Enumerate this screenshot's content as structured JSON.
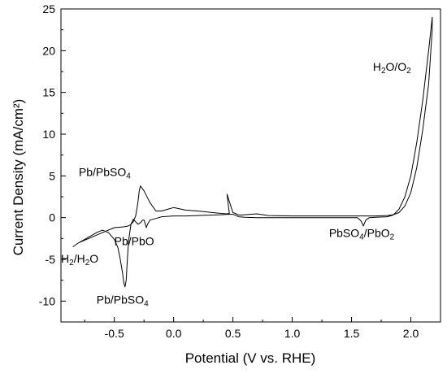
{
  "chart_data": {
    "type": "line",
    "xlabel": "Potential (V vs. RHE)",
    "ylabel": "Current Density (mA/cm²)",
    "xlim": [
      -0.95,
      2.25
    ],
    "ylim": [
      -12.5,
      25
    ],
    "xticks": [
      -0.5,
      0.0,
      0.5,
      1.0,
      1.5,
      2.0
    ],
    "xtick_labels": [
      "-0.5",
      "0.0",
      "0.5",
      "1.0",
      "1.5",
      "2.0"
    ],
    "yticks": [
      -10,
      -5,
      0,
      5,
      10,
      15,
      20,
      25
    ],
    "ytick_labels": [
      "-10",
      "-5",
      "0",
      "5",
      "10",
      "15",
      "20",
      "25"
    ],
    "grid": false,
    "line_color": "#000000",
    "series": [
      {
        "x": [
          -0.85,
          -0.8,
          -0.75,
          -0.7,
          -0.65,
          -0.6,
          -0.55,
          -0.5,
          -0.47,
          -0.45,
          -0.43,
          -0.42,
          -0.41,
          -0.4,
          -0.39,
          -0.38,
          -0.36,
          -0.34,
          -0.32,
          -0.3,
          -0.28,
          -0.26,
          -0.25,
          -0.24,
          -0.23,
          -0.22,
          -0.2,
          -0.15,
          -0.1,
          0.0,
          0.1,
          0.2,
          0.3,
          0.4,
          0.45,
          0.5,
          0.55,
          0.6,
          0.7,
          0.8,
          1.0,
          1.2,
          1.4,
          1.55,
          1.58,
          1.6,
          1.62,
          1.65,
          1.7,
          1.8,
          1.85,
          1.9,
          1.95,
          2.0,
          2.05,
          2.1,
          2.15,
          2.18,
          2.18,
          2.15,
          2.1,
          2.05,
          2.0,
          1.95,
          1.9,
          1.85,
          1.8,
          1.7,
          1.6,
          1.4,
          1.2,
          1.0,
          0.8,
          0.7,
          0.6,
          0.55,
          0.52,
          0.5,
          0.45,
          0.47,
          0.45,
          0.4,
          0.3,
          0.2,
          0.1,
          0.0,
          -0.05,
          -0.1,
          -0.15,
          -0.2,
          -0.25,
          -0.28,
          -0.29,
          -0.3,
          -0.31,
          -0.32,
          -0.34,
          -0.36,
          -0.38,
          -0.42,
          -0.5,
          -0.6,
          -0.7,
          -0.8,
          -0.85
        ],
        "y": [
          -3.5,
          -3.0,
          -2.6,
          -2.2,
          -1.8,
          -1.5,
          -1.8,
          -2.6,
          -3.6,
          -5.0,
          -6.7,
          -7.8,
          -8.3,
          -7.5,
          -5.0,
          -2.8,
          -0.8,
          -0.2,
          -0.5,
          -0.8,
          -0.6,
          -0.3,
          -0.3,
          -0.7,
          -1.2,
          -0.8,
          -0.3,
          -0.1,
          0.1,
          0.2,
          0.2,
          0.25,
          0.3,
          0.35,
          0.4,
          0.4,
          0.1,
          0.05,
          0.0,
          0.0,
          0.0,
          0.0,
          0.0,
          0.0,
          -0.4,
          -1.0,
          -0.3,
          0.0,
          0.05,
          0.1,
          0.3,
          1.0,
          2.5,
          5.0,
          9.0,
          14.0,
          20.0,
          24.0,
          22.5,
          16.0,
          10.5,
          6.0,
          3.0,
          1.4,
          0.6,
          0.35,
          0.25,
          0.2,
          0.2,
          0.2,
          0.2,
          0.2,
          0.25,
          0.45,
          0.35,
          0.3,
          0.5,
          0.6,
          2.8,
          0.5,
          0.45,
          0.5,
          0.65,
          0.8,
          0.9,
          1.2,
          1.0,
          0.8,
          0.8,
          1.8,
          3.2,
          3.8,
          3.2,
          2.0,
          1.0,
          0.2,
          -0.5,
          -0.8,
          -1.0,
          -1.1,
          -1.2,
          -1.8,
          -2.4,
          -3.0,
          -3.5
        ]
      }
    ],
    "annotations": [
      {
        "main": "Pb/PbSO",
        "sub": "4",
        "tail": "",
        "x": -0.8,
        "y": 5.0
      },
      {
        "main": "Pb/PbO",
        "sub": "",
        "tail": "",
        "x": -0.5,
        "y": -3.3
      },
      {
        "main": "H",
        "sub": "2",
        "tail": "/H",
        "sub2": "2",
        "tail2": "O",
        "x": -0.95,
        "y": -5.4
      },
      {
        "main": "Pb/PbSO",
        "sub": "4",
        "tail": "",
        "x": -0.65,
        "y": -10.3
      },
      {
        "main": "PbSO",
        "sub": "4",
        "tail": "/PbO",
        "sub2": "2",
        "tail2": "",
        "x": 1.31,
        "y": -2.3
      },
      {
        "main": "H",
        "sub": "2",
        "tail": "O/O",
        "sub2": "2",
        "tail2": "",
        "x": 1.68,
        "y": 17.6
      }
    ]
  }
}
